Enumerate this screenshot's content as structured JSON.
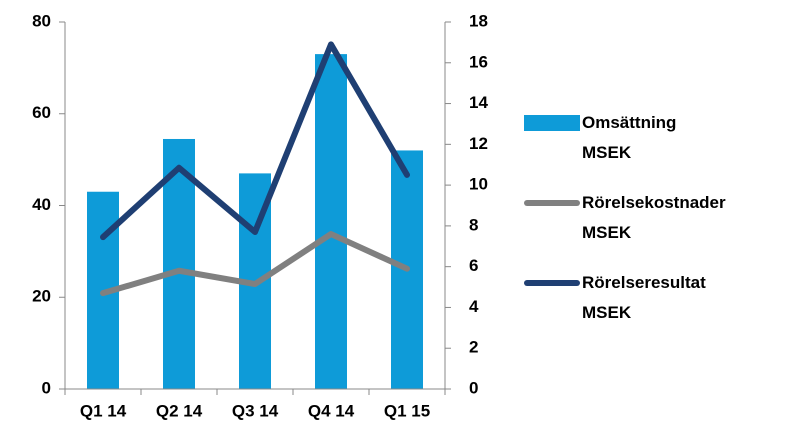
{
  "chart_data": {
    "type": "bar_line",
    "categories": [
      "Q1 14",
      "Q2 14",
      "Q3 14",
      "Q4 14",
      "Q1 15"
    ],
    "series": [
      {
        "name": "Omsättning MSEK",
        "type": "bar",
        "color": "#0e9bd8",
        "values": [
          43,
          54.5,
          47,
          73,
          52
        ]
      },
      {
        "name": "Rörelsekostnader MSEK",
        "type": "line",
        "axis": "y2",
        "color": "#808080",
        "values": [
          4.7,
          5.8,
          5.15,
          7.6,
          5.9
        ]
      },
      {
        "name": "Rörelseresultat MSEK",
        "type": "line",
        "axis": "y2",
        "color": "#1f3f73",
        "values": [
          7.45,
          10.85,
          7.7,
          16.9,
          10.5
        ]
      }
    ],
    "ylim": [
      0,
      80
    ],
    "yticks": [
      0,
      20,
      40,
      60,
      80
    ],
    "y2lim": [
      0,
      18
    ],
    "y2ticks": [
      0,
      2,
      4,
      6,
      8,
      10,
      12,
      14,
      16,
      18
    ],
    "legend": "right"
  }
}
